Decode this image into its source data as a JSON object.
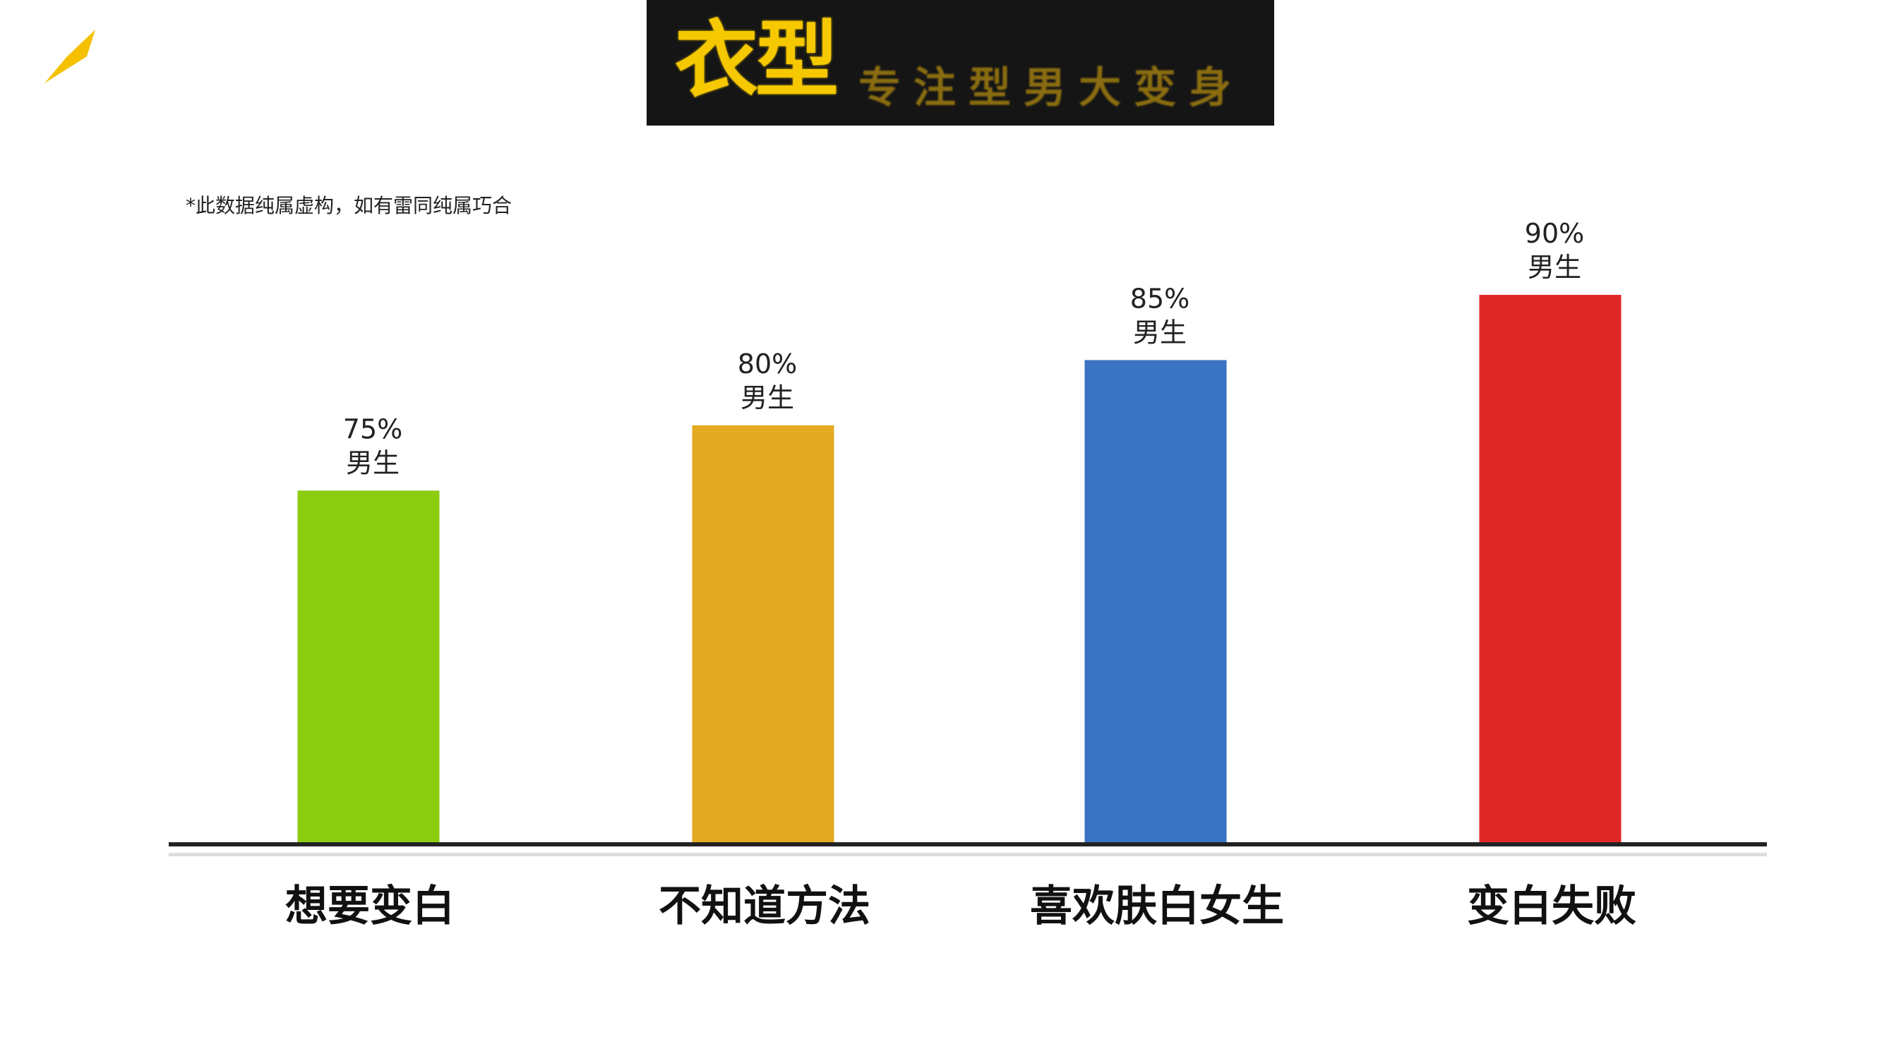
{
  "logo": {
    "name": "yellow-slash-logo",
    "color": "#f5c000"
  },
  "banner": {
    "title": "衣型",
    "subtitle": "专注型男大变身",
    "background": "#151515",
    "title_color": "#f5c800"
  },
  "note": "*此数据纯属虚构，如有雷同纯属巧合",
  "chart_data": {
    "type": "bar",
    "categories": [
      "想要变白",
      "不知道方法",
      "喜欢肤白女生",
      "变白失败"
    ],
    "values": [
      75,
      80,
      85,
      90
    ],
    "value_labels": [
      "75%",
      "80%",
      "85%",
      "90%"
    ],
    "unit_label": "男生",
    "colors": [
      "#8bcb10",
      "#e4aa22",
      "#3a73c4",
      "#e12828"
    ],
    "ylim": [
      48,
      100
    ],
    "grid": false,
    "title": "",
    "xlabel": "",
    "ylabel": ""
  }
}
